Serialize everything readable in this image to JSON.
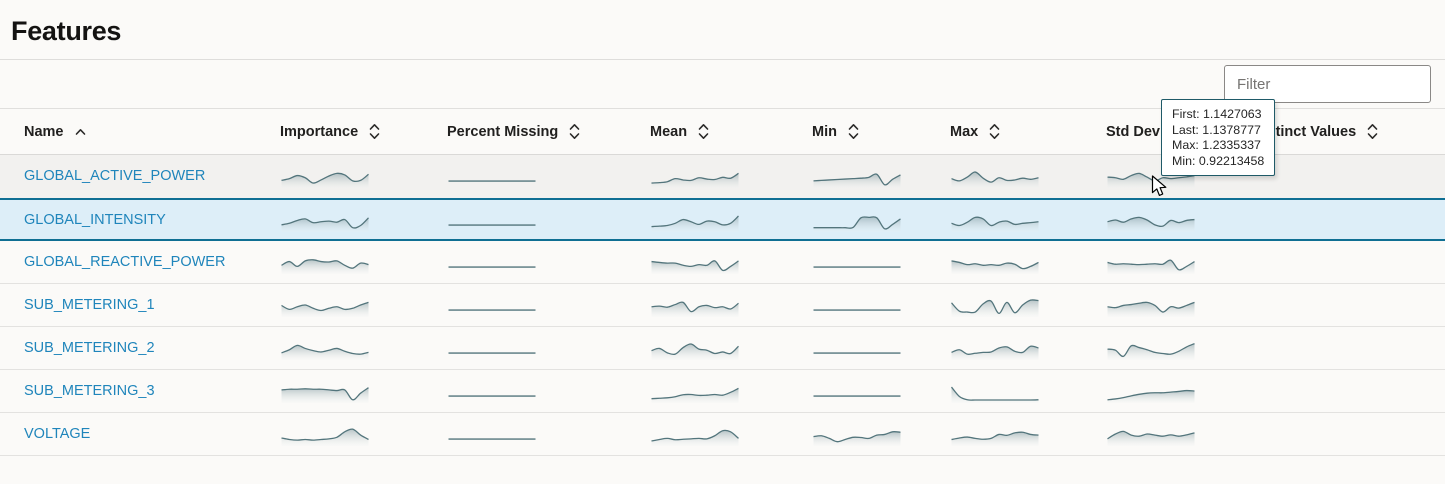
{
  "page": {
    "title": "Features"
  },
  "toolbar": {
    "filter_placeholder": "Filter"
  },
  "colors": {
    "link": "#1f85bb",
    "selected_row_bg": "#ddeef8",
    "selected_row_border": "#0f6f93",
    "hover_row_bg": "#f2f1ef",
    "sparkline_stroke": "#53757c",
    "tooltip_border": "#1f5a68"
  },
  "table": {
    "columns": [
      {
        "key": "name",
        "label": "Name",
        "sort": "asc"
      },
      {
        "key": "importance",
        "label": "Importance",
        "sort": "both"
      },
      {
        "key": "percent_missing",
        "label": "Percent Missing",
        "sort": "both"
      },
      {
        "key": "mean",
        "label": "Mean",
        "sort": "both"
      },
      {
        "key": "min",
        "label": "Min",
        "sort": "both"
      },
      {
        "key": "max",
        "label": "Max",
        "sort": "both"
      },
      {
        "key": "std_dev",
        "label": "Std Dev",
        "sort": "both"
      },
      {
        "key": "distinct_values",
        "label": "Distinct Values",
        "sort": "both"
      }
    ],
    "rows": [
      {
        "name": "GLOBAL_ACTIVE_POWER",
        "state": "hover",
        "sparklines": {
          "importance": [
            0.3,
            0.38,
            0.52,
            0.42,
            0.18,
            0.32,
            0.5,
            0.62,
            0.55,
            0.28,
            0.3,
            0.58
          ],
          "percent_missing": [
            0.27,
            0.27,
            0.27,
            0.27,
            0.27,
            0.27,
            0.27,
            0.27,
            0.27,
            0.27,
            0.27,
            0.27
          ],
          "mean": [
            0.18,
            0.2,
            0.24,
            0.38,
            0.32,
            0.3,
            0.42,
            0.36,
            0.34,
            0.44,
            0.4,
            0.62
          ],
          "min": [
            0.28,
            0.3,
            0.32,
            0.34,
            0.36,
            0.38,
            0.4,
            0.44,
            0.58,
            0.1,
            0.35,
            0.55
          ],
          "max": [
            0.38,
            0.28,
            0.45,
            0.68,
            0.4,
            0.22,
            0.42,
            0.3,
            0.32,
            0.4,
            0.35,
            0.42
          ],
          "std_dev": [
            0.45,
            0.42,
            0.35,
            0.52,
            0.62,
            0.45,
            0.28,
            0.42,
            0.38,
            0.42,
            0.46,
            0.52
          ]
        }
      },
      {
        "name": "GLOBAL_INTENSITY",
        "state": "selected",
        "sparklines": {
          "importance": [
            0.28,
            0.35,
            0.48,
            0.55,
            0.38,
            0.42,
            0.45,
            0.4,
            0.52,
            0.15,
            0.25,
            0.6
          ],
          "percent_missing": [
            0.27,
            0.27,
            0.27,
            0.27,
            0.27,
            0.27,
            0.27,
            0.27,
            0.27,
            0.27,
            0.27,
            0.27
          ],
          "mean": [
            0.2,
            0.22,
            0.25,
            0.35,
            0.52,
            0.42,
            0.3,
            0.45,
            0.42,
            0.28,
            0.35,
            0.68
          ],
          "min": [
            0.15,
            0.15,
            0.15,
            0.15,
            0.15,
            0.16,
            0.6,
            0.62,
            0.6,
            0.1,
            0.3,
            0.55
          ],
          "max": [
            0.35,
            0.25,
            0.4,
            0.62,
            0.55,
            0.25,
            0.4,
            0.45,
            0.3,
            0.35,
            0.38,
            0.42
          ],
          "std_dev": [
            0.42,
            0.5,
            0.4,
            0.55,
            0.62,
            0.5,
            0.28,
            0.22,
            0.48,
            0.38,
            0.48,
            0.52
          ]
        }
      },
      {
        "name": "GLOBAL_REACTIVE_POWER",
        "state": "default",
        "sparklines": {
          "importance": [
            0.35,
            0.52,
            0.3,
            0.55,
            0.6,
            0.52,
            0.5,
            0.55,
            0.35,
            0.22,
            0.45,
            0.38
          ],
          "percent_missing": [
            0.27,
            0.27,
            0.27,
            0.27,
            0.27,
            0.27,
            0.27,
            0.27,
            0.27,
            0.27,
            0.27,
            0.27
          ],
          "mean": [
            0.52,
            0.48,
            0.45,
            0.45,
            0.35,
            0.3,
            0.38,
            0.35,
            0.55,
            0.12,
            0.3,
            0.55
          ],
          "min": [
            0.27,
            0.27,
            0.27,
            0.27,
            0.27,
            0.27,
            0.27,
            0.27,
            0.27,
            0.27,
            0.27,
            0.27
          ],
          "max": [
            0.55,
            0.48,
            0.38,
            0.42,
            0.35,
            0.38,
            0.35,
            0.45,
            0.4,
            0.2,
            0.3,
            0.48
          ],
          "std_dev": [
            0.48,
            0.4,
            0.42,
            0.4,
            0.38,
            0.4,
            0.42,
            0.4,
            0.58,
            0.15,
            0.3,
            0.52
          ]
        }
      },
      {
        "name": "SUB_METERING_1",
        "state": "default",
        "sparklines": {
          "importance": [
            0.48,
            0.3,
            0.42,
            0.5,
            0.35,
            0.25,
            0.35,
            0.42,
            0.3,
            0.35,
            0.5,
            0.62
          ],
          "percent_missing": [
            0.27,
            0.27,
            0.27,
            0.27,
            0.27,
            0.27,
            0.27,
            0.27,
            0.27,
            0.27,
            0.27,
            0.27
          ],
          "mean": [
            0.42,
            0.45,
            0.4,
            0.52,
            0.62,
            0.2,
            0.42,
            0.48,
            0.38,
            0.42,
            0.32,
            0.58
          ],
          "min": [
            0.27,
            0.27,
            0.27,
            0.27,
            0.27,
            0.27,
            0.27,
            0.27,
            0.27,
            0.27,
            0.27,
            0.27
          ],
          "max": [
            0.6,
            0.22,
            0.18,
            0.18,
            0.55,
            0.68,
            0.12,
            0.62,
            0.15,
            0.5,
            0.72,
            0.7
          ],
          "std_dev": [
            0.42,
            0.38,
            0.48,
            0.52,
            0.58,
            0.62,
            0.48,
            0.18,
            0.42,
            0.36,
            0.48,
            0.62
          ]
        }
      },
      {
        "name": "SUB_METERING_2",
        "state": "default",
        "sparklines": {
          "importance": [
            0.28,
            0.42,
            0.62,
            0.48,
            0.38,
            0.32,
            0.4,
            0.48,
            0.35,
            0.25,
            0.22,
            0.3
          ],
          "percent_missing": [
            0.27,
            0.27,
            0.27,
            0.27,
            0.27,
            0.27,
            0.27,
            0.27,
            0.27,
            0.27,
            0.27,
            0.27
          ],
          "mean": [
            0.38,
            0.48,
            0.28,
            0.22,
            0.52,
            0.68,
            0.45,
            0.4,
            0.25,
            0.32,
            0.25,
            0.58
          ],
          "min": [
            0.27,
            0.27,
            0.27,
            0.27,
            0.27,
            0.27,
            0.27,
            0.27,
            0.27,
            0.27,
            0.27,
            0.27
          ],
          "max": [
            0.3,
            0.42,
            0.22,
            0.26,
            0.3,
            0.32,
            0.5,
            0.55,
            0.35,
            0.3,
            0.58,
            0.5
          ],
          "std_dev": [
            0.45,
            0.4,
            0.12,
            0.6,
            0.52,
            0.42,
            0.3,
            0.25,
            0.22,
            0.35,
            0.55,
            0.7
          ]
        }
      },
      {
        "name": "SUB_METERING_3",
        "state": "default",
        "sparklines": {
          "importance": [
            0.55,
            0.58,
            0.58,
            0.6,
            0.58,
            0.58,
            0.55,
            0.52,
            0.55,
            0.1,
            0.4,
            0.65
          ],
          "percent_missing": [
            0.27,
            0.27,
            0.27,
            0.27,
            0.27,
            0.27,
            0.27,
            0.27,
            0.27,
            0.27,
            0.27,
            0.27
          ],
          "mean": [
            0.15,
            0.17,
            0.19,
            0.24,
            0.33,
            0.34,
            0.3,
            0.31,
            0.34,
            0.31,
            0.44,
            0.62
          ],
          "min": [
            0.27,
            0.27,
            0.27,
            0.27,
            0.27,
            0.27,
            0.27,
            0.27,
            0.27,
            0.27,
            0.27,
            0.27
          ],
          "max": [
            0.68,
            0.25,
            0.1,
            0.09,
            0.09,
            0.09,
            0.09,
            0.09,
            0.09,
            0.09,
            0.09,
            0.1
          ],
          "std_dev": [
            0.1,
            0.14,
            0.2,
            0.28,
            0.35,
            0.4,
            0.42,
            0.42,
            0.45,
            0.48,
            0.52,
            0.5
          ]
        }
      },
      {
        "name": "VOLTAGE",
        "state": "default",
        "sparklines": {
          "importance": [
            0.32,
            0.25,
            0.22,
            0.25,
            0.22,
            0.25,
            0.28,
            0.35,
            0.6,
            0.72,
            0.45,
            0.25
          ],
          "percent_missing": [
            0.27,
            0.27,
            0.27,
            0.27,
            0.27,
            0.27,
            0.27,
            0.27,
            0.27,
            0.27,
            0.27,
            0.27
          ],
          "mean": [
            0.18,
            0.25,
            0.3,
            0.24,
            0.26,
            0.28,
            0.3,
            0.28,
            0.42,
            0.65,
            0.6,
            0.3
          ],
          "min": [
            0.38,
            0.42,
            0.3,
            0.15,
            0.25,
            0.35,
            0.34,
            0.3,
            0.45,
            0.48,
            0.6,
            0.58
          ],
          "max": [
            0.25,
            0.32,
            0.36,
            0.3,
            0.26,
            0.3,
            0.48,
            0.44,
            0.55,
            0.58,
            0.48,
            0.45
          ],
          "std_dev": [
            0.28,
            0.5,
            0.62,
            0.45,
            0.4,
            0.5,
            0.45,
            0.4,
            0.46,
            0.4,
            0.46,
            0.55
          ]
        }
      }
    ]
  },
  "tooltip": {
    "visible": true,
    "lines": [
      {
        "label": "First",
        "value": "1.1427063"
      },
      {
        "label": "Last",
        "value": "1.1378777"
      },
      {
        "label": "Max",
        "value": "1.2335337"
      },
      {
        "label": "Min",
        "value": "0.92213458"
      }
    ]
  }
}
